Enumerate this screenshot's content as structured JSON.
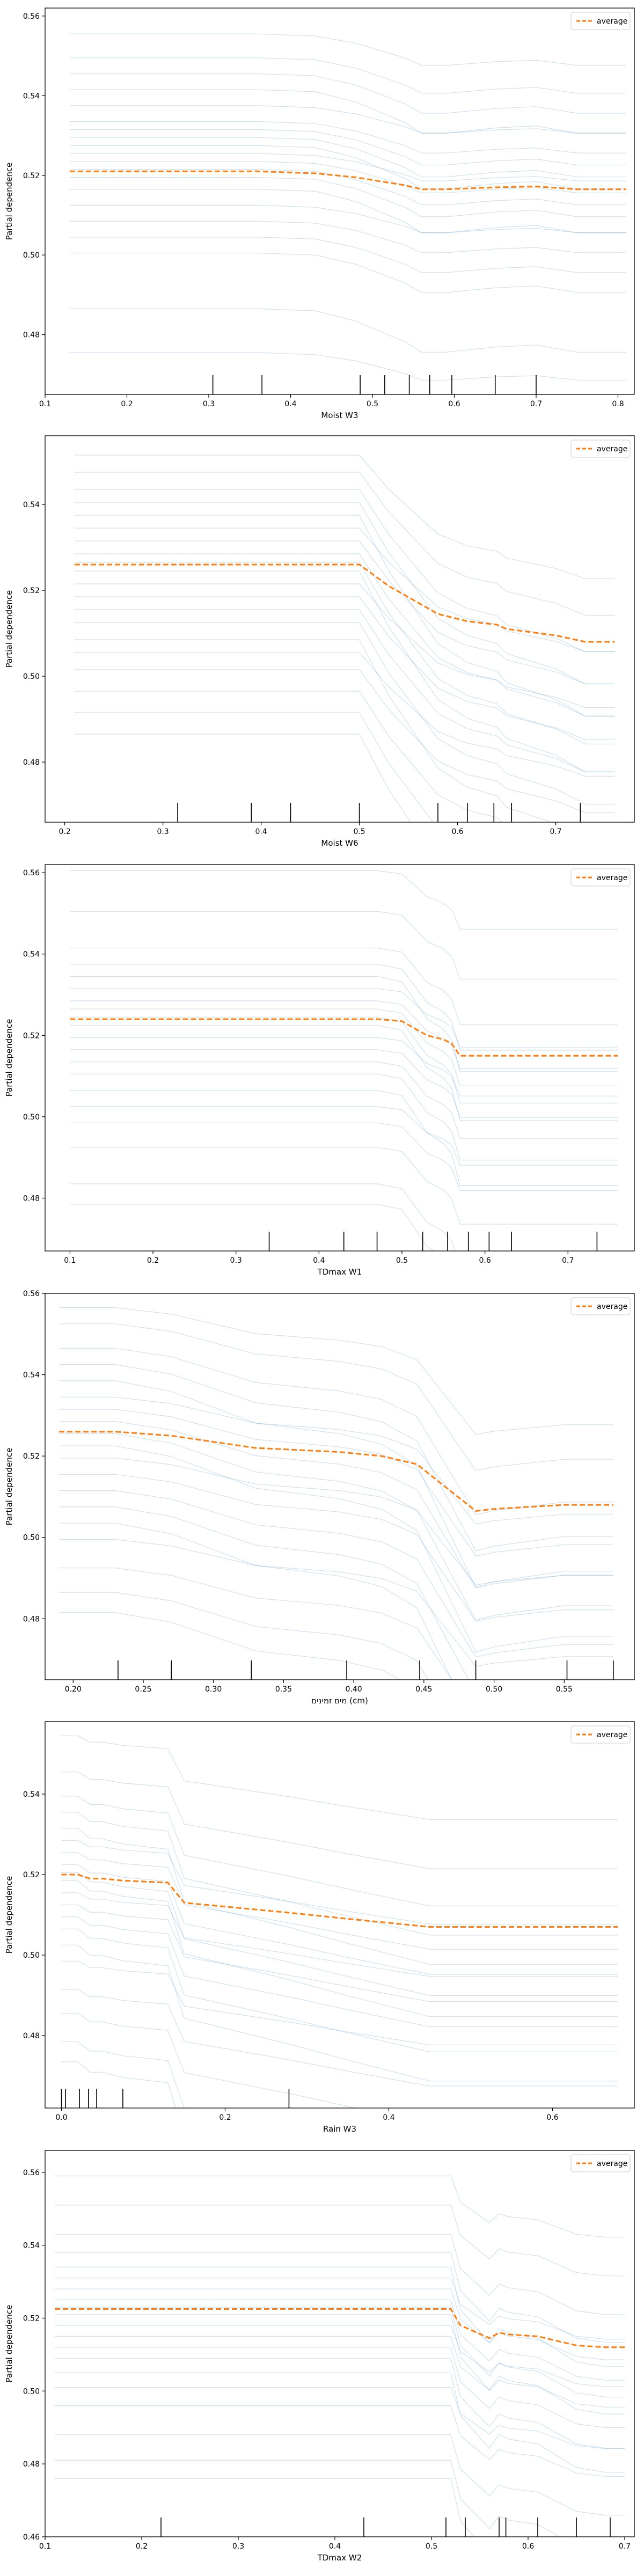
{
  "chart_data": [
    {
      "type": "line",
      "xlabel": "Moist W3",
      "ylabel": "Partial dependence",
      "xlim": [
        0.1,
        0.82
      ],
      "ylim": [
        0.465,
        0.562
      ],
      "xticks": [
        0.1,
        0.2,
        0.3,
        0.4,
        0.5,
        0.6,
        0.7,
        0.8
      ],
      "yticks": [
        0.48,
        0.5,
        0.52,
        0.54,
        0.56
      ],
      "legend": {
        "position": "top-right",
        "entries": [
          "average"
        ]
      },
      "grid": false,
      "x": [
        0.13,
        0.3,
        0.36,
        0.43,
        0.48,
        0.51,
        0.54,
        0.56,
        0.59,
        0.65,
        0.7,
        0.75,
        0.81
      ],
      "average": [
        0.521,
        0.521,
        0.521,
        0.5205,
        0.5195,
        0.5185,
        0.5175,
        0.5165,
        0.5165,
        0.517,
        0.5172,
        0.5165,
        0.5165
      ],
      "ice_offsets": [
        0.0545,
        0.0345,
        0.0285,
        0.0245,
        0.0205,
        0.0165,
        0.0125,
        0.0105,
        0.0085,
        0.0065,
        0.0045,
        0.0025,
        0.0005,
        -0.0015,
        -0.0045,
        -0.0085,
        -0.0125,
        -0.0165,
        -0.0205,
        -0.0345,
        -0.0455
      ],
      "ice_shape": [
        0,
        0,
        0,
        0,
        -0.001,
        -0.002,
        -0.003,
        -0.004,
        -0.004,
        -0.0035,
        -0.0033,
        -0.004,
        -0.004
      ],
      "rug": [
        0.305,
        0.365,
        0.485,
        0.515,
        0.545,
        0.57,
        0.597,
        0.65,
        0.7
      ]
    },
    {
      "type": "line",
      "xlabel": "Moist W6",
      "ylabel": "Partial dependence",
      "xlim": [
        0.18,
        0.78
      ],
      "ylim": [
        0.466,
        0.556
      ],
      "xticks": [
        0.2,
        0.3,
        0.4,
        0.5,
        0.6,
        0.7
      ],
      "yticks": [
        0.48,
        0.5,
        0.52,
        0.54
      ],
      "legend": {
        "position": "top-right",
        "entries": [
          "average"
        ]
      },
      "grid": false,
      "x": [
        0.21,
        0.32,
        0.39,
        0.43,
        0.5,
        0.53,
        0.58,
        0.61,
        0.64,
        0.65,
        0.7,
        0.73,
        0.76
      ],
      "average": [
        0.526,
        0.526,
        0.526,
        0.526,
        0.526,
        0.521,
        0.5145,
        0.5128,
        0.512,
        0.511,
        0.5095,
        0.508,
        0.508
      ],
      "ice_offsets": [
        0.0255,
        0.0215,
        0.0175,
        0.0145,
        0.0115,
        0.0085,
        0.0055,
        0.0025,
        0.0005,
        -0.0015,
        -0.0045,
        -0.0075,
        -0.0105,
        -0.0135,
        -0.0175,
        -0.0205,
        -0.0245,
        -0.0295,
        -0.0345,
        -0.0395
      ],
      "ice_shape": [
        0,
        0,
        0,
        0,
        0,
        -0.005,
        -0.0115,
        -0.0132,
        -0.014,
        -0.015,
        -0.0165,
        -0.018,
        -0.018
      ],
      "rug": [
        0.315,
        0.39,
        0.43,
        0.5,
        0.58,
        0.61,
        0.637,
        0.655,
        0.725
      ]
    },
    {
      "type": "line",
      "xlabel": "TDmax W1",
      "ylabel": "Partial dependence",
      "xlim": [
        0.07,
        0.78
      ],
      "ylim": [
        0.467,
        0.562
      ],
      "xticks": [
        0.1,
        0.2,
        0.3,
        0.4,
        0.5,
        0.6,
        0.7
      ],
      "yticks": [
        0.48,
        0.5,
        0.52,
        0.54,
        0.56
      ],
      "legend": {
        "position": "top-right",
        "entries": [
          "average"
        ]
      },
      "grid": false,
      "x": [
        0.1,
        0.34,
        0.43,
        0.47,
        0.5,
        0.53,
        0.55,
        0.56,
        0.57,
        0.58,
        0.61,
        0.63,
        0.76
      ],
      "average": [
        0.524,
        0.524,
        0.524,
        0.524,
        0.5235,
        0.52,
        0.519,
        0.518,
        0.515,
        0.515,
        0.515,
        0.515,
        0.515
      ],
      "ice_offsets": [
        0.0365,
        0.0265,
        0.0175,
        0.0135,
        0.0105,
        0.0075,
        0.0045,
        0.0025,
        0.0005,
        -0.0015,
        -0.0045,
        -0.0075,
        -0.0105,
        -0.0135,
        -0.0175,
        -0.0215,
        -0.0255,
        -0.0315,
        -0.0405,
        -0.0455
      ],
      "ice_shape": [
        0,
        0,
        0,
        0,
        -0.0005,
        -0.004,
        -0.005,
        -0.006,
        -0.009,
        -0.009,
        -0.009,
        -0.009,
        -0.009
      ],
      "rug": [
        0.34,
        0.43,
        0.47,
        0.525,
        0.555,
        0.58,
        0.605,
        0.632,
        0.735
      ]
    },
    {
      "type": "line",
      "xlabel": "מים זמינים (cm)",
      "ylabel": "Partial dependence",
      "xlim": [
        0.18,
        0.6
      ],
      "ylim": [
        0.465,
        0.56
      ],
      "xticks": [
        0.2,
        0.25,
        0.3,
        0.35,
        0.4,
        0.45,
        0.5,
        0.55
      ],
      "yticks": [
        0.48,
        0.5,
        0.52,
        0.54,
        0.56
      ],
      "legend": {
        "position": "top-right",
        "entries": [
          "average"
        ]
      },
      "grid": false,
      "x": [
        0.19,
        0.23,
        0.27,
        0.33,
        0.39,
        0.42,
        0.445,
        0.465,
        0.487,
        0.5,
        0.55,
        0.585
      ],
      "average": [
        0.526,
        0.526,
        0.525,
        0.522,
        0.521,
        0.52,
        0.518,
        0.5125,
        0.5065,
        0.507,
        0.508,
        0.508
      ],
      "ice_offsets": [
        0.0305,
        0.0265,
        0.0205,
        0.0165,
        0.0125,
        0.0085,
        0.0055,
        0.0025,
        -0.0005,
        -0.0035,
        -0.0065,
        -0.0105,
        -0.0145,
        -0.0185,
        -0.0225,
        -0.0265,
        -0.0335,
        -0.0395,
        -0.0445
      ],
      "ice_shape": [
        0,
        0,
        -0.001,
        -0.004,
        -0.005,
        -0.006,
        -0.008,
        -0.0135,
        -0.0195,
        -0.019,
        -0.018,
        -0.018
      ],
      "rug": [
        0.232,
        0.27,
        0.327,
        0.395,
        0.447,
        0.487,
        0.552,
        0.585
      ]
    },
    {
      "type": "line",
      "xlabel": "Rain W3",
      "ylabel": "Partial dependence",
      "xlim": [
        -0.02,
        0.7
      ],
      "ylim": [
        0.462,
        0.558
      ],
      "xticks": [
        0.0,
        0.2,
        0.4,
        0.6
      ],
      "yticks": [
        0.48,
        0.5,
        0.52,
        0.54
      ],
      "legend": {
        "position": "top-right",
        "entries": [
          "average"
        ]
      },
      "grid": false,
      "x": [
        0.0,
        0.02,
        0.035,
        0.05,
        0.075,
        0.13,
        0.15,
        0.28,
        0.35,
        0.45,
        0.55,
        0.65,
        0.68
      ],
      "average": [
        0.52,
        0.52,
        0.519,
        0.519,
        0.5185,
        0.518,
        0.513,
        0.5105,
        0.509,
        0.507,
        0.507,
        0.507,
        0.507
      ],
      "ice_offsets": [
        0.0345,
        0.0255,
        0.0195,
        0.0155,
        0.0115,
        0.0085,
        0.0055,
        0.0025,
        0.0005,
        -0.0015,
        -0.0045,
        -0.0075,
        -0.0105,
        -0.0135,
        -0.0175,
        -0.0215,
        -0.0285,
        -0.0345,
        -0.0415,
        -0.0465
      ],
      "ice_shape": [
        0,
        0,
        -0.001,
        -0.001,
        -0.0015,
        -0.002,
        -0.007,
        -0.0095,
        -0.011,
        -0.013,
        -0.013,
        -0.013,
        -0.013
      ],
      "rug": [
        0.0,
        0.005,
        0.022,
        0.033,
        0.043,
        0.075,
        0.278
      ]
    },
    {
      "type": "line",
      "xlabel": "TDmax W2",
      "ylabel": "Partial dependence",
      "xlim": [
        0.1,
        0.71
      ],
      "ylim": [
        0.46,
        0.566
      ],
      "xticks": [
        0.1,
        0.2,
        0.3,
        0.4,
        0.5,
        0.6,
        0.7
      ],
      "yticks": [
        0.46,
        0.48,
        0.5,
        0.52,
        0.54,
        0.56
      ],
      "legend": {
        "position": "top-right",
        "entries": [
          "average"
        ]
      },
      "grid": false,
      "x": [
        0.11,
        0.22,
        0.43,
        0.52,
        0.53,
        0.56,
        0.57,
        0.58,
        0.61,
        0.65,
        0.68,
        0.7
      ],
      "average": [
        0.5225,
        0.5225,
        0.5225,
        0.5225,
        0.518,
        0.5145,
        0.516,
        0.5155,
        0.515,
        0.5125,
        0.512,
        0.512
      ],
      "ice_offsets": [
        0.0365,
        0.0285,
        0.0205,
        0.0155,
        0.0115,
        0.0085,
        0.0055,
        0.0025,
        0.0005,
        -0.0015,
        -0.0045,
        -0.0075,
        -0.0105,
        -0.0135,
        -0.0175,
        -0.0215,
        -0.0265,
        -0.0345,
        -0.0415,
        -0.0465
      ],
      "ice_shape": [
        0,
        0,
        0,
        0,
        -0.0045,
        -0.008,
        -0.0065,
        -0.007,
        -0.0075,
        -0.01,
        -0.0105,
        -0.0105
      ],
      "rug": [
        0.22,
        0.43,
        0.515,
        0.535,
        0.57,
        0.577,
        0.61,
        0.65,
        0.685
      ]
    }
  ],
  "colors": {
    "ice_line": "#1f77b4",
    "average_line": "#ff7f0e",
    "axis": "#000000"
  }
}
